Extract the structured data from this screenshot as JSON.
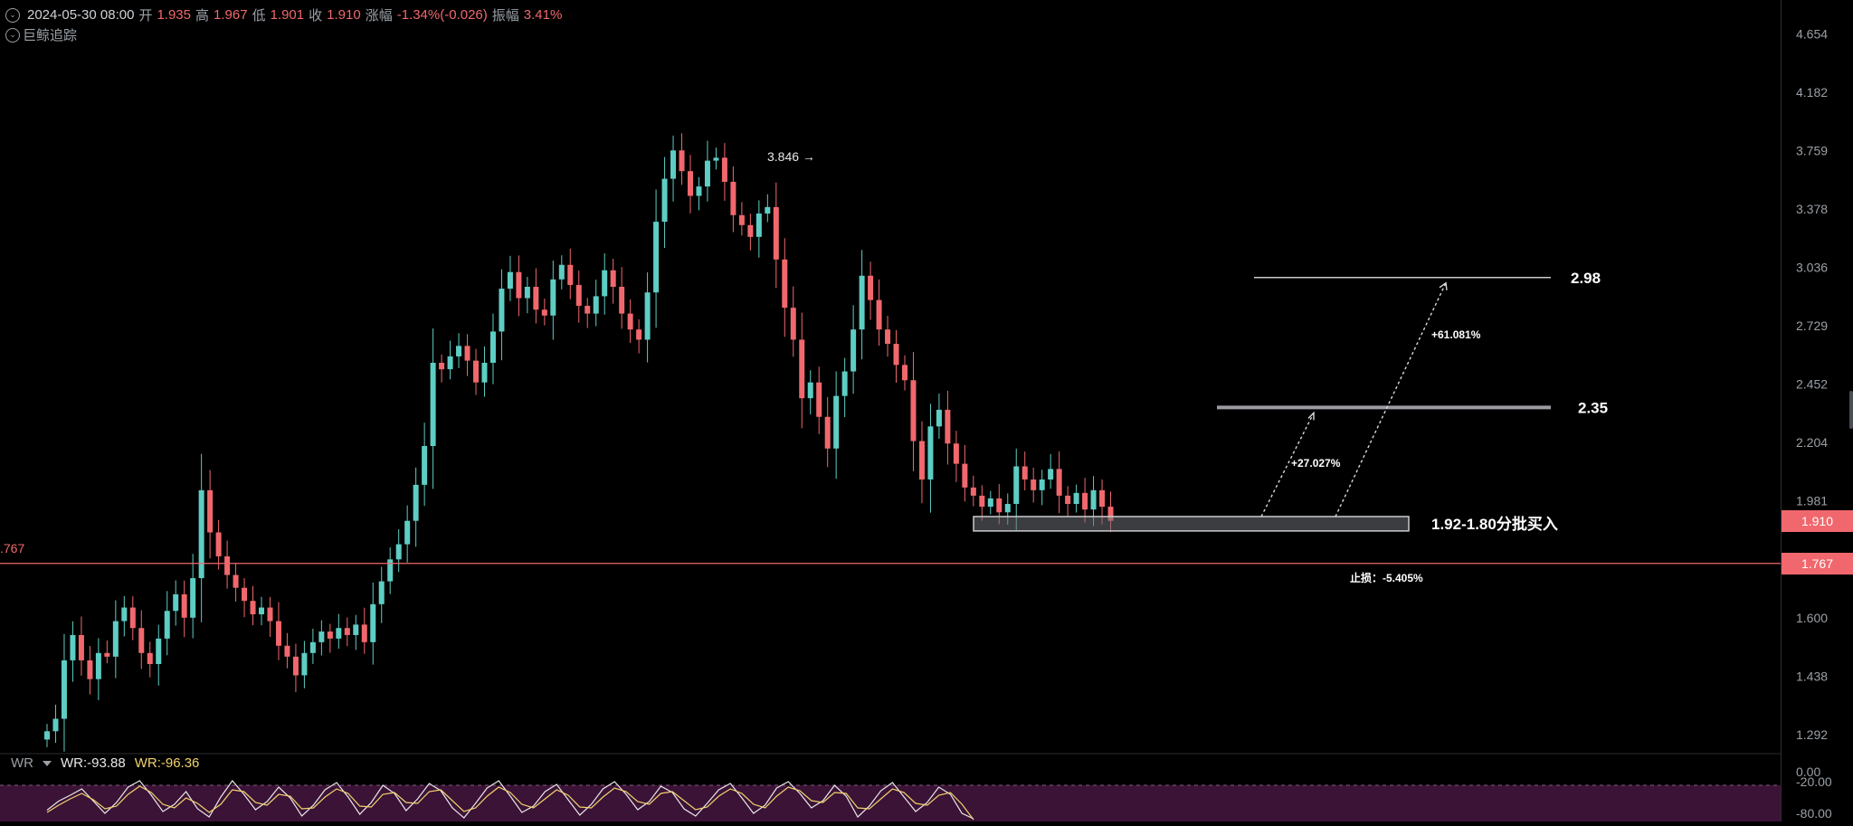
{
  "header": {
    "datetime": "2024-05-30 08:00",
    "open_label": "开",
    "open": "1.935",
    "high_label": "高",
    "high": "1.967",
    "low_label": "低",
    "low": "1.901",
    "close_label": "收",
    "close": "1.910",
    "change_label": "涨幅",
    "change": "-1.34%(-0.026)",
    "amplitude_label": "振幅",
    "amplitude": "3.41%"
  },
  "indicator_label": "巨鲸追踪",
  "left_stub_label": ".767",
  "wr": {
    "label": "WR",
    "wr1": "WR:-93.88",
    "wr2": "WR:-96.36"
  },
  "price_tags": {
    "current": "1.910",
    "line": "1.767"
  },
  "colors": {
    "up": "#5ecdc4",
    "down": "#f0686d",
    "background": "#000000",
    "wr_fill": "#3b1336",
    "wr1_line": "#e8e8ea",
    "wr2_line": "#f1d36b"
  },
  "chart_data": {
    "type": "candlestick",
    "y_ticks": [
      "4.654",
      "4.182",
      "3.759",
      "3.378",
      "3.036",
      "2.729",
      "2.452",
      "2.204",
      "1.981",
      "1.600",
      "1.438",
      "1.292"
    ],
    "wr_ticks": [
      "0.00",
      "-20.00",
      "-80.00"
    ],
    "ylim": [
      1.25,
      4.95
    ],
    "log_scale": true,
    "peak_label": "3.846",
    "current_price": 1.91,
    "horizontal_line": 1.767,
    "annotations": {
      "target_high": "2.98",
      "target_mid": "2.35",
      "buy_zone": "1.92-1.80分批买入",
      "gain_high": "+61.081%",
      "gain_mid": "+27.027%",
      "stop_loss": "止损：-5.405%"
    },
    "close_path": [
      1.3,
      1.33,
      1.48,
      1.55,
      1.48,
      1.43,
      1.5,
      1.49,
      1.59,
      1.63,
      1.57,
      1.5,
      1.47,
      1.54,
      1.62,
      1.67,
      1.6,
      1.72,
      2.02,
      1.87,
      1.79,
      1.73,
      1.69,
      1.65,
      1.61,
      1.63,
      1.59,
      1.52,
      1.49,
      1.44,
      1.5,
      1.53,
      1.56,
      1.54,
      1.57,
      1.55,
      1.58,
      1.53,
      1.64,
      1.71,
      1.78,
      1.83,
      1.91,
      2.04,
      2.19,
      2.55,
      2.52,
      2.58,
      2.63,
      2.56,
      2.46,
      2.55,
      2.7,
      2.92,
      3.01,
      2.87,
      2.93,
      2.81,
      2.78,
      2.97,
      3.05,
      2.94,
      2.83,
      2.79,
      2.88,
      3.02,
      2.93,
      2.79,
      2.71,
      2.66,
      2.9,
      3.3,
      3.57,
      3.76,
      3.62,
      3.46,
      3.52,
      3.69,
      3.71,
      3.55,
      3.34,
      3.28,
      3.21,
      3.35,
      3.39,
      3.08,
      2.82,
      2.66,
      2.39,
      2.46,
      2.31,
      2.18,
      2.4,
      2.51,
      2.71,
      2.99,
      2.86,
      2.71,
      2.64,
      2.54,
      2.47,
      2.21,
      2.06,
      2.27,
      2.34,
      2.2,
      2.12,
      2.03,
      2.0,
      1.96,
      1.99,
      1.94,
      1.97,
      2.11,
      2.06,
      2.02,
      2.06,
      2.1,
      2.0,
      1.97,
      2.01,
      1.95,
      2.02,
      1.96,
      1.91
    ],
    "wr1": [
      -75,
      -55,
      -42,
      -28,
      -55,
      -82,
      -58,
      -24,
      -10,
      -42,
      -78,
      -62,
      -34,
      -72,
      -90,
      -46,
      -10,
      -40,
      -74,
      -56,
      -24,
      -48,
      -88,
      -64,
      -30,
      -14,
      -46,
      -84,
      -58,
      -20,
      -38,
      -76,
      -50,
      -16,
      -32,
      -70,
      -92,
      -60,
      -26,
      -10,
      -44,
      -80,
      -66,
      -34,
      -18,
      -52,
      -86,
      -62,
      -28,
      -12,
      -40,
      -74,
      -56,
      -22,
      -36,
      -72,
      -88,
      -60,
      -30,
      -16,
      -48,
      -82,
      -64,
      -26,
      -12,
      -38,
      -70,
      -54,
      -20,
      -44,
      -90,
      -66,
      -32,
      -14,
      -46,
      -78,
      -58,
      -24,
      -40,
      -82,
      -94
    ],
    "wr2": [
      -80,
      -64,
      -50,
      -38,
      -52,
      -72,
      -66,
      -40,
      -22,
      -36,
      -62,
      -70,
      -48,
      -60,
      -80,
      -62,
      -30,
      -34,
      -58,
      -64,
      -40,
      -44,
      -72,
      -70,
      -46,
      -28,
      -38,
      -66,
      -68,
      -40,
      -36,
      -58,
      -60,
      -34,
      -30,
      -54,
      -78,
      -70,
      -44,
      -24,
      -36,
      -62,
      -70,
      -50,
      -30,
      -42,
      -68,
      -70,
      -46,
      -26,
      -34,
      -56,
      -62,
      -38,
      -34,
      -54,
      -74,
      -68,
      -44,
      -28,
      -38,
      -62,
      -70,
      -44,
      -24,
      -32,
      -54,
      -58,
      -36,
      -38,
      -70,
      -72,
      -50,
      -28,
      -36,
      -60,
      -64,
      -42,
      -36,
      -62,
      -96
    ]
  }
}
